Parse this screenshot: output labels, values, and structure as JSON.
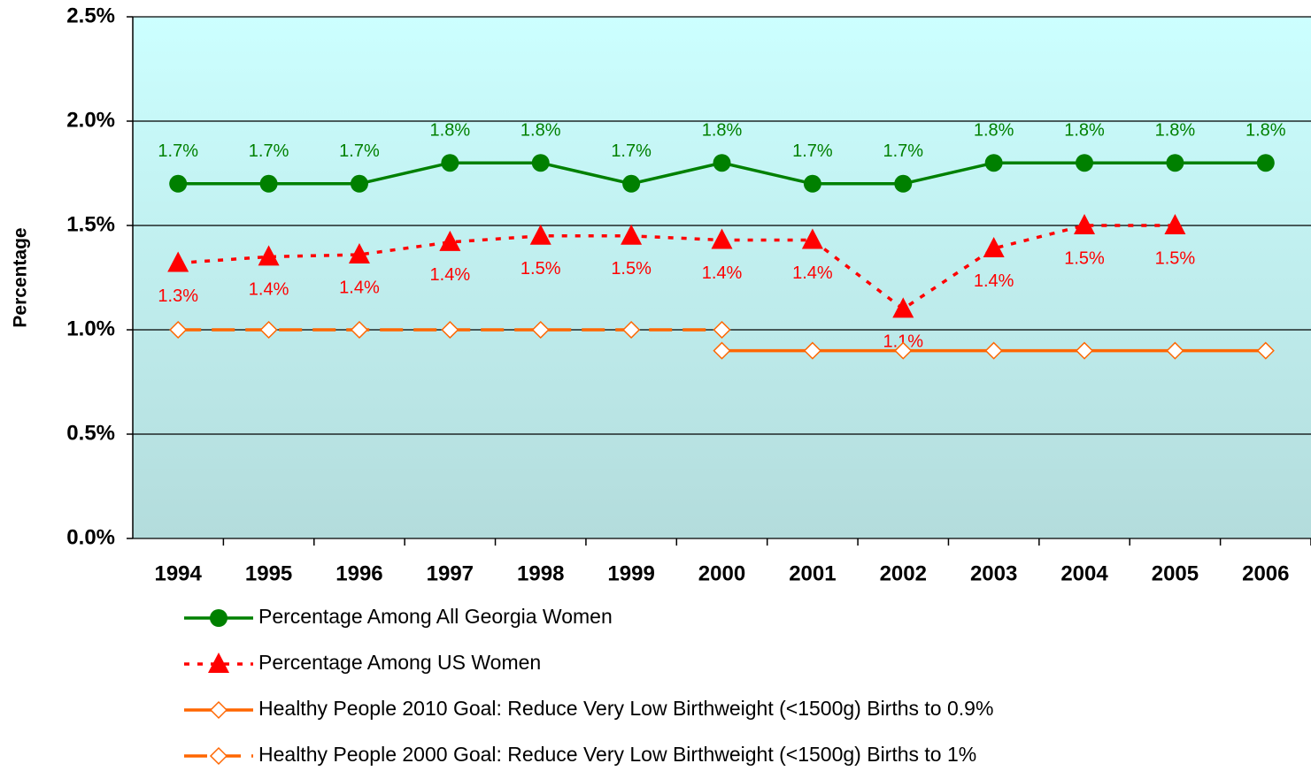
{
  "chart_data": {
    "type": "line",
    "y_axis_label": "Percentage",
    "categories": [
      "1994",
      "1995",
      "1996",
      "1997",
      "1998",
      "1999",
      "2000",
      "2001",
      "2002",
      "2003",
      "2004",
      "2005",
      "2006"
    ],
    "ylim": [
      0,
      2.5
    ],
    "yticks": [
      {
        "value": 0,
        "label": "0.0%"
      },
      {
        "value": 0.5,
        "label": "0.5%"
      },
      {
        "value": 1,
        "label": "1.0%"
      },
      {
        "value": 1.5,
        "label": "1.5%"
      },
      {
        "value": 2,
        "label": "2.0%"
      },
      {
        "value": 2.5,
        "label": "2.5%"
      }
    ],
    "grid": true,
    "legend_position": "bottom",
    "series": [
      {
        "name": "Percentage Among All Georgia Women",
        "color": "#008000",
        "marker": "circle",
        "line_style": "solid",
        "label_position": "above",
        "values": [
          1.7,
          1.7,
          1.7,
          1.8,
          1.8,
          1.7,
          1.8,
          1.7,
          1.7,
          1.8,
          1.8,
          1.8,
          1.8
        ],
        "value_labels": [
          "1.7%",
          "1.7%",
          "1.7%",
          "1.8%",
          "1.8%",
          "1.7%",
          "1.8%",
          "1.7%",
          "1.7%",
          "1.8%",
          "1.8%",
          "1.8%",
          "1.8%"
        ]
      },
      {
        "name": "Percentage Among US Women",
        "color": "#ff0000",
        "marker": "triangle",
        "line_style": "dotted",
        "label_position": "below",
        "values": [
          1.32,
          1.35,
          1.36,
          1.42,
          1.45,
          1.45,
          1.43,
          1.43,
          1.1,
          1.39,
          1.5,
          1.5,
          null
        ],
        "value_labels": [
          "1.3%",
          "1.4%",
          "1.4%",
          "1.4%",
          "1.5%",
          "1.5%",
          "1.4%",
          "1.4%",
          "1.1%",
          "1.4%",
          "1.5%",
          "1.5%",
          null
        ]
      },
      {
        "name": "Healthy People 2010 Goal:  Reduce Very Low Birthweight (<1500g) Births to 0.9%",
        "color": "#ff6600",
        "marker": "diamond",
        "line_style": "solid",
        "values": [
          null,
          null,
          null,
          null,
          null,
          null,
          0.9,
          0.9,
          0.9,
          0.9,
          0.9,
          0.9,
          0.9
        ]
      },
      {
        "name": "Healthy People 2000 Goal:  Reduce Very Low Birthweight (<1500g) Births to 1%",
        "color": "#ff6600",
        "marker": "diamond",
        "line_style": "dashed",
        "values": [
          1,
          1,
          1,
          1,
          1,
          1,
          1,
          null,
          null,
          null,
          null,
          null,
          null
        ]
      }
    ]
  }
}
